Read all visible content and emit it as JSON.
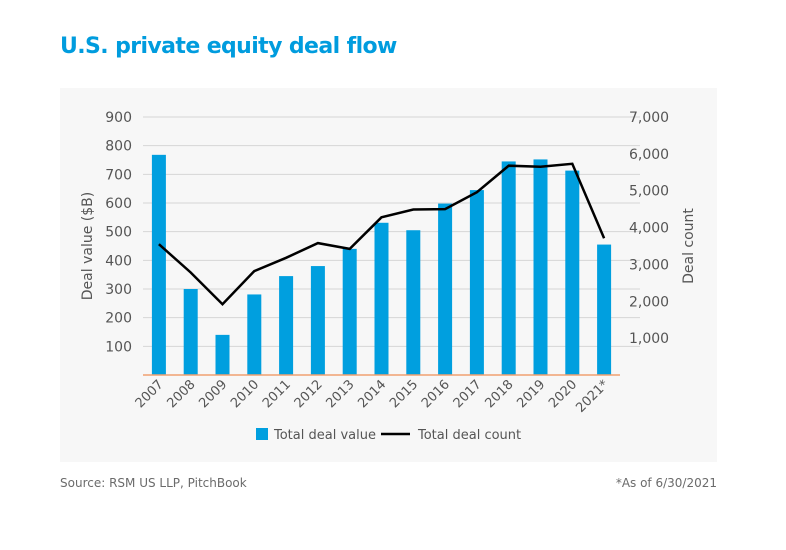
{
  "title": "U.S. private equity deal flow",
  "source": "Source: RSM US LLP, PitchBook",
  "note": "*As of 6/30/2021",
  "chart_data": {
    "type": "bar",
    "categories": [
      "2007",
      "2008",
      "2009",
      "2010",
      "2011",
      "2012",
      "2013",
      "2014",
      "2015",
      "2016",
      "2017",
      "2018",
      "2019",
      "2020",
      "2021*"
    ],
    "series": [
      {
        "name": "Total deal value",
        "type": "bar",
        "axis": "left",
        "color": "#009fdf",
        "values": [
          768,
          300,
          140,
          281,
          345,
          380,
          440,
          531,
          505,
          598,
          645,
          745,
          752,
          713,
          455
        ]
      },
      {
        "name": "Total deal count",
        "type": "line",
        "axis": "right",
        "color": "#000000",
        "values": [
          3550,
          2780,
          1920,
          2820,
          3180,
          3580,
          3420,
          4280,
          4490,
          4500,
          4960,
          5680,
          5650,
          5730,
          3710
        ]
      }
    ],
    "ylabel": "Deal value ($B)",
    "y2label": "Deal count",
    "ylim": [
      0,
      900
    ],
    "y2lim": [
      0,
      7000
    ],
    "yticks": [
      "100",
      "200",
      "300",
      "400",
      "500",
      "600",
      "700",
      "800",
      "900"
    ],
    "y2ticks": [
      "1,000",
      "2,000",
      "3,000",
      "4,000",
      "5,000",
      "6,000",
      "7,000"
    ],
    "grid": true,
    "legend": "bottom"
  }
}
